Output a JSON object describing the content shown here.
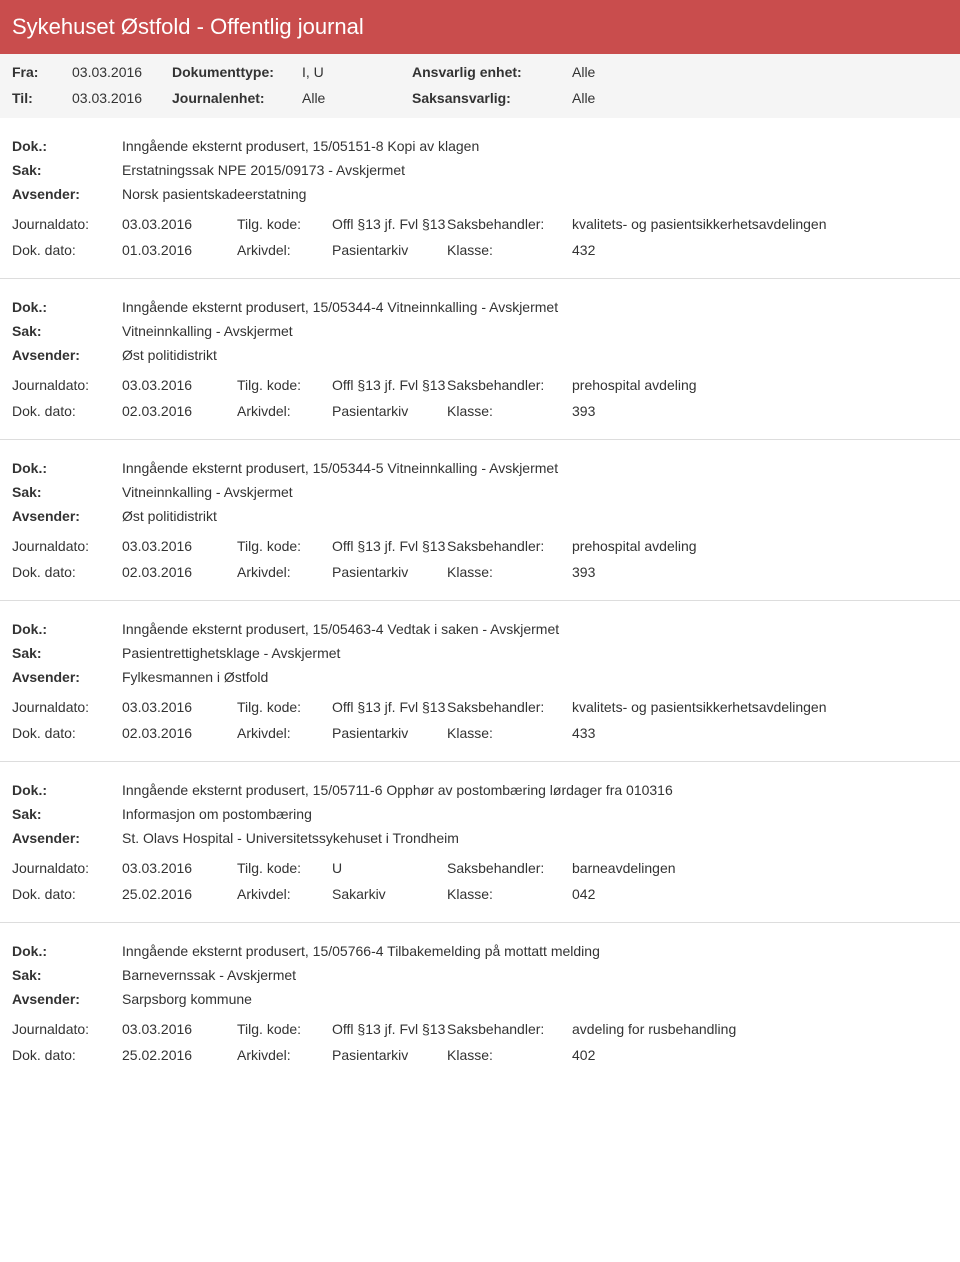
{
  "colors": {
    "header_bg": "#c94d4d",
    "header_text": "#ffffff",
    "meta_bg": "#f5f5f5",
    "border": "#dddddd",
    "text": "#333333"
  },
  "header": {
    "title": "Sykehuset Østfold - Offentlig journal"
  },
  "meta": {
    "fra_label": "Fra:",
    "fra_value": "03.03.2016",
    "til_label": "Til:",
    "til_value": "03.03.2016",
    "doktype_label": "Dokumenttype:",
    "doktype_value": "I, U",
    "journalenhet_label": "Journalenhet:",
    "journalenhet_value": "Alle",
    "ansvarlig_label": "Ansvarlig enhet:",
    "ansvarlig_value": "Alle",
    "saksansvarlig_label": "Saksansvarlig:",
    "saksansvarlig_value": "Alle"
  },
  "labels": {
    "dok": "Dok.:",
    "sak": "Sak:",
    "avsender": "Avsender:",
    "journaldato": "Journaldato:",
    "dokdato": "Dok. dato:",
    "tilgkode": "Tilg. kode:",
    "arkivdel": "Arkivdel:",
    "saksbehandler": "Saksbehandler:",
    "klasse": "Klasse:"
  },
  "entries": [
    {
      "dok": "Inngående eksternt produsert, 15/05151-8 Kopi av klagen",
      "sak": "Erstatningssak NPE 2015/09173 - Avskjermet",
      "avsender": "Norsk pasientskadeerstatning",
      "journaldato": "03.03.2016",
      "tilgkode": "Offl §13 jf. Fvl §13",
      "saksbehandler": "kvalitets- og pasientsikkerhetsavdelingen",
      "dokdato": "01.03.2016",
      "arkivdel": "Pasientarkiv",
      "klasse": "432"
    },
    {
      "dok": "Inngående eksternt produsert, 15/05344-4 Vitneinnkalling - Avskjermet",
      "sak": "Vitneinnkalling - Avskjermet",
      "avsender": "Øst politidistrikt",
      "journaldato": "03.03.2016",
      "tilgkode": "Offl §13 jf. Fvl §13",
      "saksbehandler": "prehospital avdeling",
      "dokdato": "02.03.2016",
      "arkivdel": "Pasientarkiv",
      "klasse": "393"
    },
    {
      "dok": "Inngående eksternt produsert, 15/05344-5 Vitneinnkalling - Avskjermet",
      "sak": "Vitneinnkalling - Avskjermet",
      "avsender": "Øst politidistrikt",
      "journaldato": "03.03.2016",
      "tilgkode": "Offl §13 jf. Fvl §13",
      "saksbehandler": "prehospital avdeling",
      "dokdato": "02.03.2016",
      "arkivdel": "Pasientarkiv",
      "klasse": "393"
    },
    {
      "dok": "Inngående eksternt produsert, 15/05463-4 Vedtak i saken - Avskjermet",
      "sak": "Pasientrettighetsklage - Avskjermet",
      "avsender": "Fylkesmannen i Østfold",
      "journaldato": "03.03.2016",
      "tilgkode": "Offl §13 jf. Fvl §13",
      "saksbehandler": "kvalitets- og pasientsikkerhetsavdelingen",
      "dokdato": "02.03.2016",
      "arkivdel": "Pasientarkiv",
      "klasse": "433"
    },
    {
      "dok": "Inngående eksternt produsert, 15/05711-6 Opphør av postombæring lørdager fra 010316",
      "sak": "Informasjon om postombæring",
      "avsender": "St. Olavs Hospital - Universitetssykehuset i Trondheim",
      "journaldato": "03.03.2016",
      "tilgkode": "U",
      "saksbehandler": "barneavdelingen",
      "dokdato": "25.02.2016",
      "arkivdel": "Sakarkiv",
      "klasse": "042"
    },
    {
      "dok": "Inngående eksternt produsert, 15/05766-4 Tilbakemelding på mottatt melding",
      "sak": "Barnevernssak - Avskjermet",
      "avsender": "Sarpsborg kommune",
      "journaldato": "03.03.2016",
      "tilgkode": "Offl §13 jf. Fvl §13",
      "saksbehandler": "avdeling for rusbehandling",
      "dokdato": "25.02.2016",
      "arkivdel": "Pasientarkiv",
      "klasse": "402"
    }
  ]
}
